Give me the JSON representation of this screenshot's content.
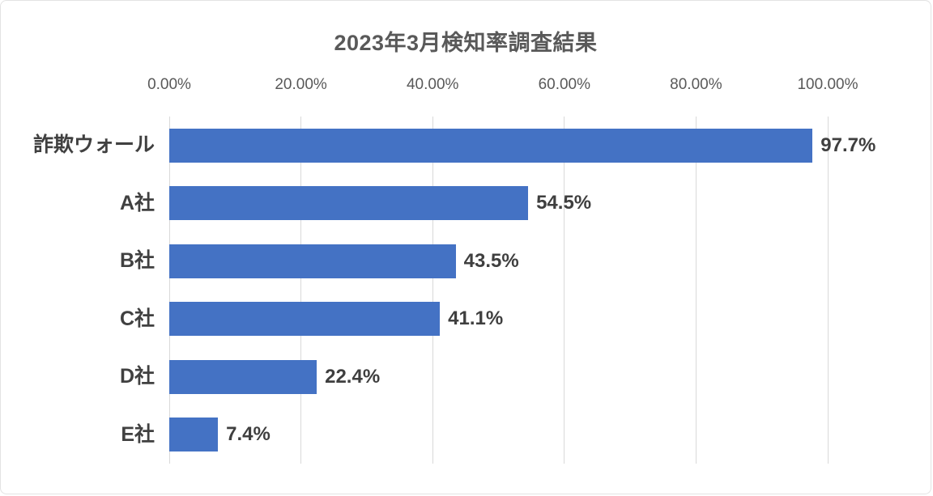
{
  "chart_data": {
    "type": "bar",
    "orientation": "horizontal",
    "title": "2023年3月検知率調査結果",
    "categories": [
      "詐欺ウォール",
      "A社",
      "B社",
      "C社",
      "D社",
      "E社"
    ],
    "values": [
      97.7,
      54.5,
      43.5,
      41.1,
      22.4,
      7.4
    ],
    "data_labels": [
      "97.7%",
      "54.5%",
      "43.5%",
      "41.1%",
      "22.4%",
      "7.4%"
    ],
    "x_axis": {
      "position": "top",
      "min": 0,
      "max": 100,
      "tick_values": [
        0,
        20,
        40,
        60,
        80,
        100
      ],
      "tick_labels": [
        "0.00%",
        "20.00%",
        "40.00%",
        "60.00%",
        "80.00%",
        "100.00%"
      ]
    },
    "grid": true,
    "legend": false,
    "colors": {
      "bar": "#4472C4",
      "gridline": "#D9D9D9",
      "title_text": "#595959",
      "tick_text": "#595959",
      "category_text": "#404040",
      "value_text": "#3F3F3F"
    }
  }
}
